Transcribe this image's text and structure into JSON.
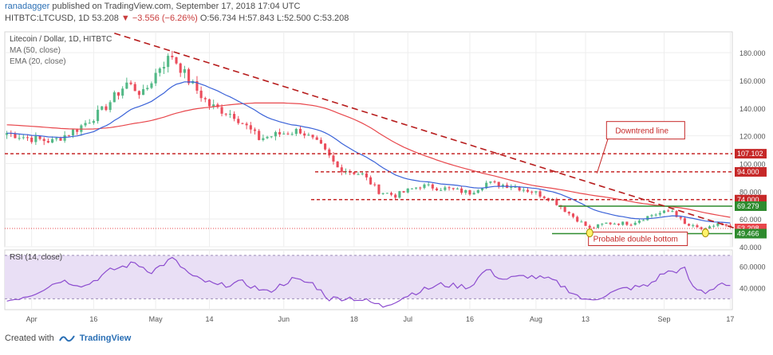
{
  "header": {
    "author": "ranadagger",
    "published": "published on TradingView.com, September 17, 2018 17:04 UTC",
    "symbol": "HITBTC:LTCUSD, 1D",
    "last": "53.208",
    "change": "▼ −3.556 (−6.26%)",
    "ohlc": "O:56.734  H:57.843  L:52.500  C:53.208"
  },
  "footer": {
    "created_with": "Created with",
    "brand": "TradingView"
  },
  "colors": {
    "up": "#53b987",
    "down": "#eb4d5c",
    "ma50": "#e8474c",
    "ema20": "#3a62d8",
    "rsi": "#8c4ccf",
    "rsi_band": "#e9dff5",
    "grid": "#eeeeee",
    "support": "#2e8b2e"
  },
  "chart_data": [
    {
      "type": "candlestick",
      "title": "Litecoin / Dollar, 1D, HITBTC",
      "legend": [
        "MA (50, close)",
        "EMA (20, close)"
      ],
      "x_tick_labels": [
        "Apr",
        "16",
        "May",
        "14",
        "Jun",
        "18",
        "Jul",
        "16",
        "Aug",
        "13",
        "Sep",
        "17"
      ],
      "y_tick_labels": [
        "40.000",
        "60.000",
        "80.000",
        "100.000",
        "120.000",
        "140.000",
        "160.000",
        "180.000"
      ],
      "ylim": [
        40,
        195
      ],
      "x_days": [
        "2018-03-26",
        "2018-09-17"
      ],
      "price_path": [
        [
          "2018-03-26",
          122
        ],
        [
          "2018-04-01",
          118
        ],
        [
          "2018-04-06",
          116
        ],
        [
          "2018-04-12",
          125
        ],
        [
          "2018-04-18",
          138
        ],
        [
          "2018-04-24",
          158
        ],
        [
          "2018-04-28",
          150
        ],
        [
          "2018-05-02",
          170
        ],
        [
          "2018-05-05",
          178
        ],
        [
          "2018-05-09",
          160
        ],
        [
          "2018-05-14",
          142
        ],
        [
          "2018-05-20",
          135
        ],
        [
          "2018-05-26",
          118
        ],
        [
          "2018-06-01",
          122
        ],
        [
          "2018-06-05",
          124
        ],
        [
          "2018-06-10",
          112
        ],
        [
          "2018-06-14",
          97
        ],
        [
          "2018-06-20",
          92
        ],
        [
          "2018-06-24",
          80
        ],
        [
          "2018-06-28",
          77
        ],
        [
          "2018-07-04",
          84
        ],
        [
          "2018-07-10",
          82
        ],
        [
          "2018-07-16",
          79
        ],
        [
          "2018-07-20",
          86
        ],
        [
          "2018-07-26",
          84
        ],
        [
          "2018-07-31",
          80
        ],
        [
          "2018-08-05",
          74
        ],
        [
          "2018-08-09",
          64
        ],
        [
          "2018-08-14",
          53
        ],
        [
          "2018-08-18",
          57
        ],
        [
          "2018-08-24",
          57
        ],
        [
          "2018-08-29",
          63
        ],
        [
          "2018-09-03",
          66
        ],
        [
          "2018-09-06",
          56
        ],
        [
          "2018-09-11",
          52
        ],
        [
          "2018-09-14",
          57
        ],
        [
          "2018-09-17",
          53.208
        ]
      ],
      "levels": [
        {
          "label": "107.102",
          "value": 107.102,
          "style": "dashed",
          "color": "#c62828"
        },
        {
          "label": "94.000",
          "value": 94.0,
          "style": "dashed",
          "color": "#c62828"
        },
        {
          "label": "74.000",
          "value": 74.0,
          "style": "dashed",
          "color": "#c62828"
        },
        {
          "label": "69.279",
          "value": 69.279,
          "style": "solid",
          "color": "#2e8b2e"
        },
        {
          "label": "53.208",
          "value": 53.208,
          "style": "last",
          "color": "#e8474c"
        },
        {
          "label": "49.466",
          "value": 49.466,
          "style": "solid",
          "color": "#2e8b2e"
        }
      ],
      "downtrend_line": {
        "start": [
          "2018-04-21",
          194
        ],
        "end": [
          "2018-09-18",
          53.5
        ]
      },
      "annotations": [
        {
          "text": "Downtrend line",
          "anchor": [
            "2018-08-20",
            124
          ]
        },
        {
          "text": "Probable double bottom",
          "anchor": [
            "2018-09-02",
            46
          ]
        }
      ]
    },
    {
      "type": "line",
      "title": "RSI (14, close)",
      "y_tick_labels": [
        "40.0000",
        "60.0000"
      ],
      "ylim": [
        20,
        75
      ],
      "band": [
        30,
        70
      ],
      "values_path": [
        [
          "2018-03-26",
          28
        ],
        [
          "2018-04-01",
          34
        ],
        [
          "2018-04-08",
          47
        ],
        [
          "2018-04-14",
          42
        ],
        [
          "2018-04-20",
          56
        ],
        [
          "2018-04-26",
          63
        ],
        [
          "2018-04-30",
          55
        ],
        [
          "2018-05-05",
          67
        ],
        [
          "2018-05-10",
          50
        ],
        [
          "2018-05-16",
          42
        ],
        [
          "2018-05-22",
          45
        ],
        [
          "2018-05-28",
          36
        ],
        [
          "2018-06-03",
          48
        ],
        [
          "2018-06-08",
          44
        ],
        [
          "2018-06-12",
          30
        ],
        [
          "2018-06-17",
          31
        ],
        [
          "2018-06-21",
          28
        ],
        [
          "2018-06-25",
          23
        ],
        [
          "2018-07-02",
          35
        ],
        [
          "2018-07-09",
          43
        ],
        [
          "2018-07-16",
          41
        ],
        [
          "2018-07-20",
          57
        ],
        [
          "2018-07-24",
          48
        ],
        [
          "2018-07-30",
          51
        ],
        [
          "2018-08-05",
          47
        ],
        [
          "2018-08-09",
          38
        ],
        [
          "2018-08-13",
          28
        ],
        [
          "2018-08-16",
          31
        ],
        [
          "2018-08-22",
          39
        ],
        [
          "2018-08-28",
          42
        ],
        [
          "2018-09-01",
          54
        ],
        [
          "2018-09-06",
          57
        ],
        [
          "2018-09-08",
          40
        ],
        [
          "2018-09-11",
          36
        ],
        [
          "2018-09-15",
          45
        ],
        [
          "2018-09-17",
          40
        ]
      ]
    }
  ]
}
